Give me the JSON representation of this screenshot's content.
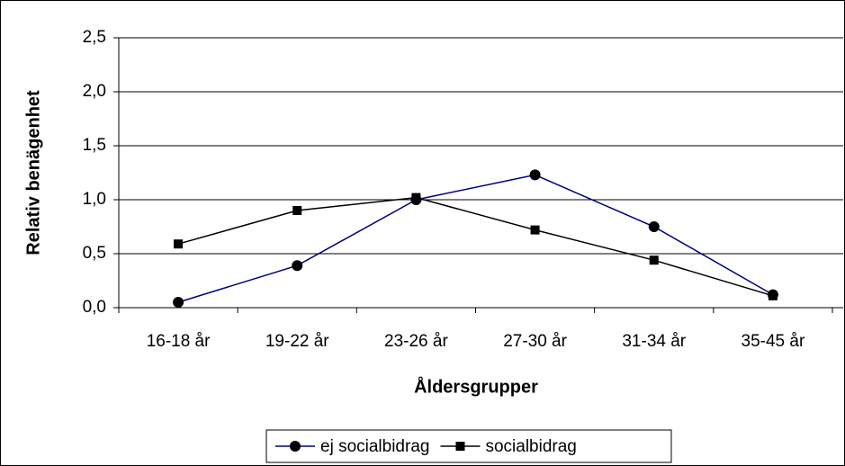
{
  "chart_data": {
    "type": "line",
    "y_label": "Relativ benägenhet",
    "x_label": "Åldersgrupper",
    "categories": [
      "16-18 år",
      "19-22 år",
      "23-26 år",
      "27-30 år",
      "31-34 år",
      "35-45 år"
    ],
    "series": [
      {
        "name": "ej socialbidrag",
        "color": "#000080",
        "marker": "circle",
        "marker_color": "#000000",
        "values": [
          0.05,
          0.39,
          1.0,
          1.23,
          0.75,
          0.12
        ]
      },
      {
        "name": "socialbidrag",
        "color": "#000000",
        "marker": "square",
        "marker_color": "#000000",
        "values": [
          0.59,
          0.9,
          1.02,
          0.72,
          0.44,
          0.11
        ]
      }
    ],
    "ylim": [
      0,
      2.5
    ],
    "yticks": [
      {
        "value": 0,
        "label": "0,0"
      },
      {
        "value": 0.5,
        "label": "0,5"
      },
      {
        "value": 1,
        "label": "1,0"
      },
      {
        "value": 1.5,
        "label": "1,5"
      },
      {
        "value": 2,
        "label": "2,0"
      },
      {
        "value": 2.5,
        "label": "2,5"
      }
    ],
    "grid": true,
    "legend": "bottom"
  }
}
